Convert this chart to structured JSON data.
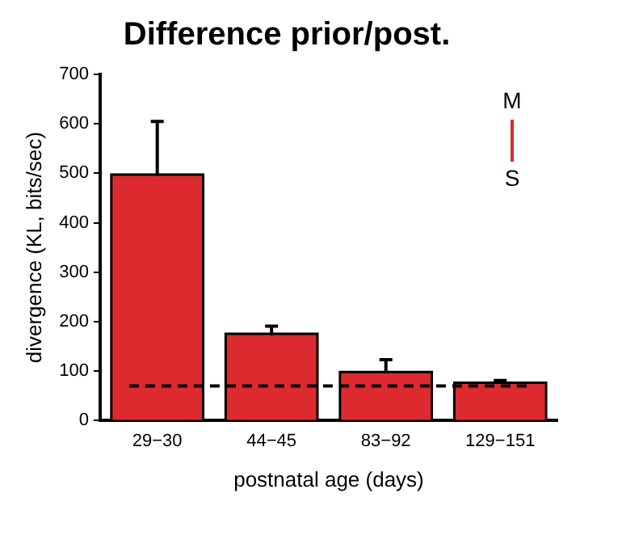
{
  "chart_data": {
    "type": "bar",
    "title": "Difference prior/post.",
    "xlabel": "postnatal age (days)",
    "ylabel": "divergence (KL, bits/sec)",
    "categories": [
      "29−30",
      "44−45",
      "83−92",
      "129−151"
    ],
    "values": [
      495,
      173,
      96,
      74
    ],
    "color": "#dd2a2f",
    "errors": [
      [
        495,
        605
      ],
      [
        173,
        191
      ],
      [
        96,
        123
      ],
      [
        74,
        81
      ]
    ],
    "ylim": [
      0,
      700
    ],
    "yticks": [
      0,
      100,
      200,
      300,
      400,
      500,
      600,
      700
    ],
    "grid": false,
    "legend": false,
    "ref_lines": [
      {
        "axis": "y",
        "value": 70,
        "line_style": "dashed",
        "color": "#000000"
      }
    ],
    "annotations": [
      "M",
      "S"
    ]
  }
}
